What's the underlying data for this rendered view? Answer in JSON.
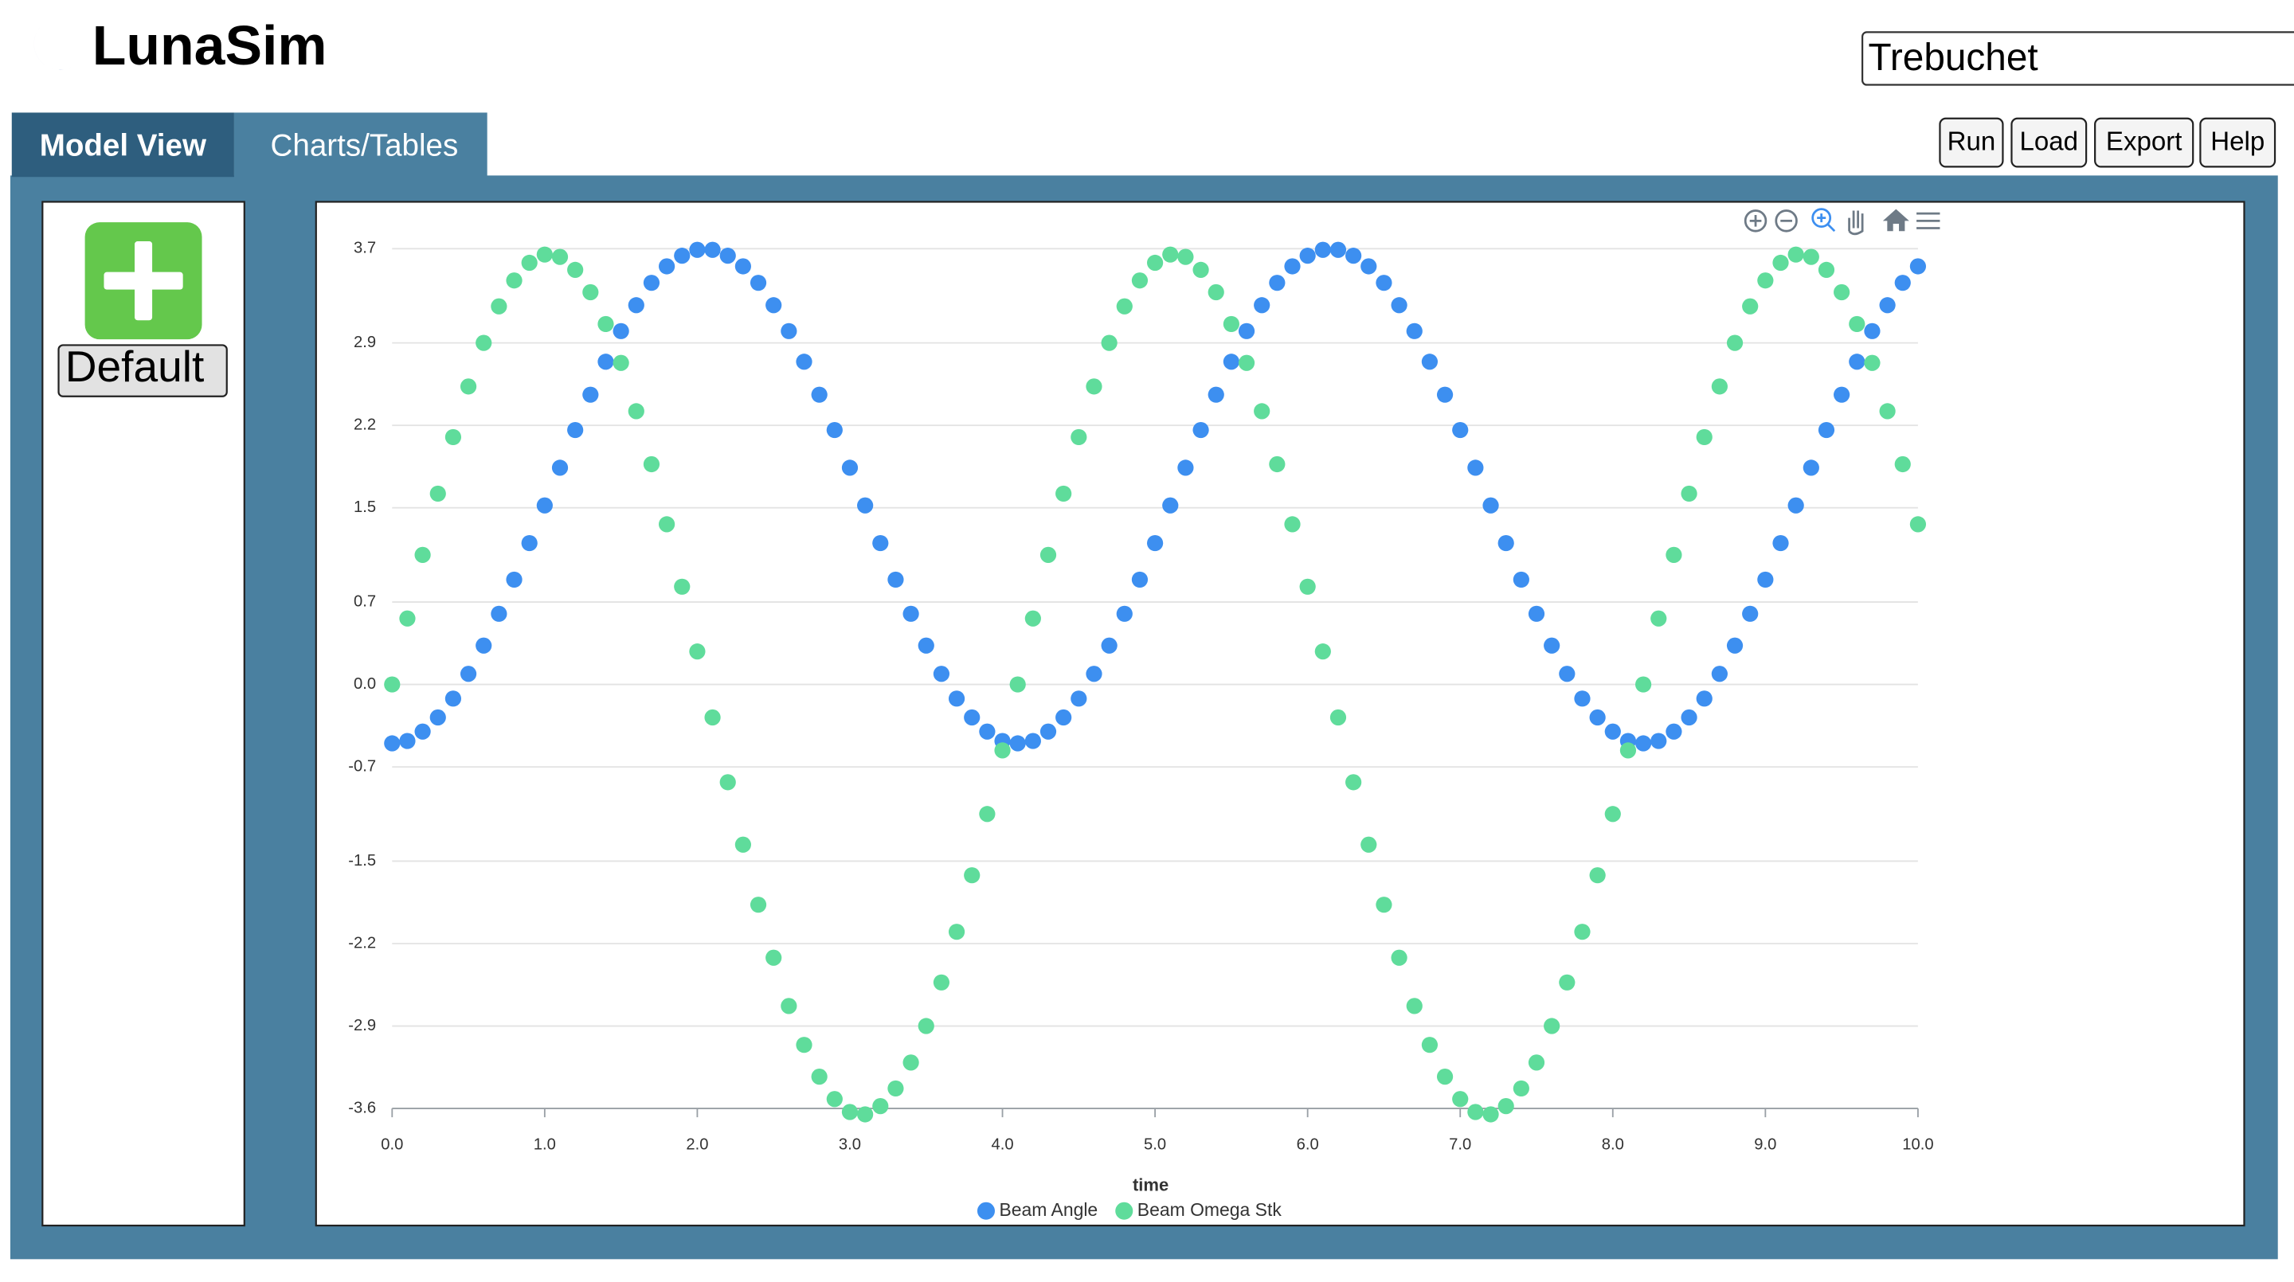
{
  "header": {
    "app_name": "LunaSim",
    "model_name": "Trebuchet"
  },
  "tabs": [
    "Model View",
    "Charts/Tables"
  ],
  "toolbar_buttons": [
    "Run",
    "Load",
    "Export",
    "Help"
  ],
  "left_panel": {
    "model_button": "Default"
  },
  "chart_data": {
    "type": "scatter",
    "x_label": "time",
    "x": [
      0,
      0.1,
      0.2,
      0.3,
      0.4,
      0.5,
      0.6,
      0.7,
      0.8,
      0.9,
      1,
      1.1,
      1.2,
      1.3,
      1.4,
      1.5,
      1.6,
      1.7,
      1.8,
      1.9,
      2,
      2.1,
      2.2,
      2.3,
      2.4,
      2.5,
      2.6,
      2.7,
      2.8,
      2.9,
      3,
      3.1,
      3.2,
      3.3,
      3.4,
      3.5,
      3.6,
      3.7,
      3.8,
      3.9,
      4,
      4.1,
      4.2,
      4.3,
      4.4,
      4.5,
      4.6,
      4.7,
      4.8,
      4.9,
      5,
      5.1,
      5.2,
      5.3,
      5.4,
      5.5,
      5.6,
      5.7,
      5.8,
      5.9,
      6,
      6.1,
      6.2,
      6.3,
      6.4,
      6.5,
      6.6,
      6.7,
      6.8,
      6.9,
      7,
      7.1,
      7.2,
      7.3,
      7.4,
      7.5,
      7.6,
      7.7,
      7.8,
      7.9,
      8,
      8.1,
      8.2,
      8.3,
      8.4,
      8.5,
      8.6,
      8.7,
      8.8,
      8.9,
      9,
      9.1,
      9.2,
      9.3,
      9.4,
      9.5,
      9.6,
      9.7,
      9.8,
      9.9,
      10
    ],
    "series": [
      {
        "name": "Beam Angle",
        "color": "#3d8ff0",
        "values": [
          -0.5,
          -0.48,
          -0.4,
          -0.28,
          -0.12,
          0.09,
          0.33,
          0.6,
          0.89,
          1.2,
          1.52,
          1.84,
          2.16,
          2.46,
          2.74,
          3,
          3.22,
          3.41,
          3.55,
          3.64,
          3.69,
          3.69,
          3.64,
          3.55,
          3.41,
          3.22,
          3,
          2.74,
          2.46,
          2.16,
          1.84,
          1.52,
          1.2,
          0.89,
          0.6,
          0.33,
          0.09,
          -0.12,
          -0.28,
          -0.4,
          -0.48,
          -0.5,
          -0.48,
          -0.4,
          -0.28,
          -0.12,
          0.09,
          0.33,
          0.6,
          0.89,
          1.2,
          1.52,
          1.84,
          2.16,
          2.46,
          2.74,
          3,
          3.22,
          3.41,
          3.55,
          3.64,
          3.69,
          3.69,
          3.64,
          3.55,
          3.41,
          3.22,
          3,
          2.74,
          2.46,
          2.16,
          1.84,
          1.52,
          1.2,
          0.89,
          0.6,
          0.33,
          0.09,
          -0.12,
          -0.28,
          -0.4,
          -0.48,
          -0.5,
          -0.48,
          -0.4,
          -0.28,
          -0.12,
          0.09,
          0.33,
          0.6,
          0.89,
          1.2,
          1.52,
          1.84,
          2.16,
          2.46,
          2.74,
          3,
          3.22,
          3.41,
          3.55
        ]
      },
      {
        "name": "Beam Omega Stk",
        "color": "#5fdc9b",
        "values": [
          0,
          0.56,
          1.1,
          1.62,
          2.1,
          2.53,
          2.9,
          3.21,
          3.43,
          3.58,
          3.65,
          3.63,
          3.52,
          3.33,
          3.06,
          2.73,
          2.32,
          1.87,
          1.36,
          0.83,
          0.28,
          -0.28,
          -0.83,
          -1.36,
          -1.87,
          -2.32,
          -2.73,
          -3.06,
          -3.33,
          -3.52,
          -3.63,
          -3.65,
          -3.58,
          -3.43,
          -3.21,
          -2.9,
          -2.53,
          -2.1,
          -1.62,
          -1.1,
          -0.56,
          0,
          0.56,
          1.1,
          1.62,
          2.1,
          2.53,
          2.9,
          3.21,
          3.43,
          3.58,
          3.65,
          3.63,
          3.52,
          3.33,
          3.06,
          2.73,
          2.32,
          1.87,
          1.36,
          0.83,
          0.28,
          -0.28,
          -0.83,
          -1.36,
          -1.87,
          -2.32,
          -2.73,
          -3.06,
          -3.33,
          -3.52,
          -3.63,
          -3.65,
          -3.58,
          -3.43,
          -3.21,
          -2.9,
          -2.53,
          -2.1,
          -1.62,
          -1.1,
          -0.56,
          0,
          0.56,
          1.1,
          1.62,
          2.1,
          2.53,
          2.9,
          3.21,
          3.43,
          3.58,
          3.65,
          3.63,
          3.52,
          3.33,
          3.06,
          2.73,
          2.32,
          1.87,
          1.36
        ]
      }
    ],
    "xlim": [
      0,
      10
    ],
    "xticks": [
      {
        "value": 0,
        "label": "0.0"
      },
      {
        "value": 1,
        "label": "1.0"
      },
      {
        "value": 2,
        "label": "2.0"
      },
      {
        "value": 3,
        "label": "3.0"
      },
      {
        "value": 4,
        "label": "4.0"
      },
      {
        "value": 5,
        "label": "5.0"
      },
      {
        "value": 6,
        "label": "6.0"
      },
      {
        "value": 7,
        "label": "7.0"
      },
      {
        "value": 8,
        "label": "8.0"
      },
      {
        "value": 9,
        "label": "9.0"
      },
      {
        "value": 10,
        "label": "10.0"
      }
    ],
    "ylim": [
      -3.7,
      3.75
    ],
    "yticks": [
      3.7,
      2.9,
      2.2,
      1.5,
      0.7,
      {
        "value": 0,
        "label": "0.0"
      },
      -0.7,
      -1.5,
      -2.2,
      -2.9,
      -3.6
    ],
    "grid": true,
    "legend": "bottom"
  }
}
